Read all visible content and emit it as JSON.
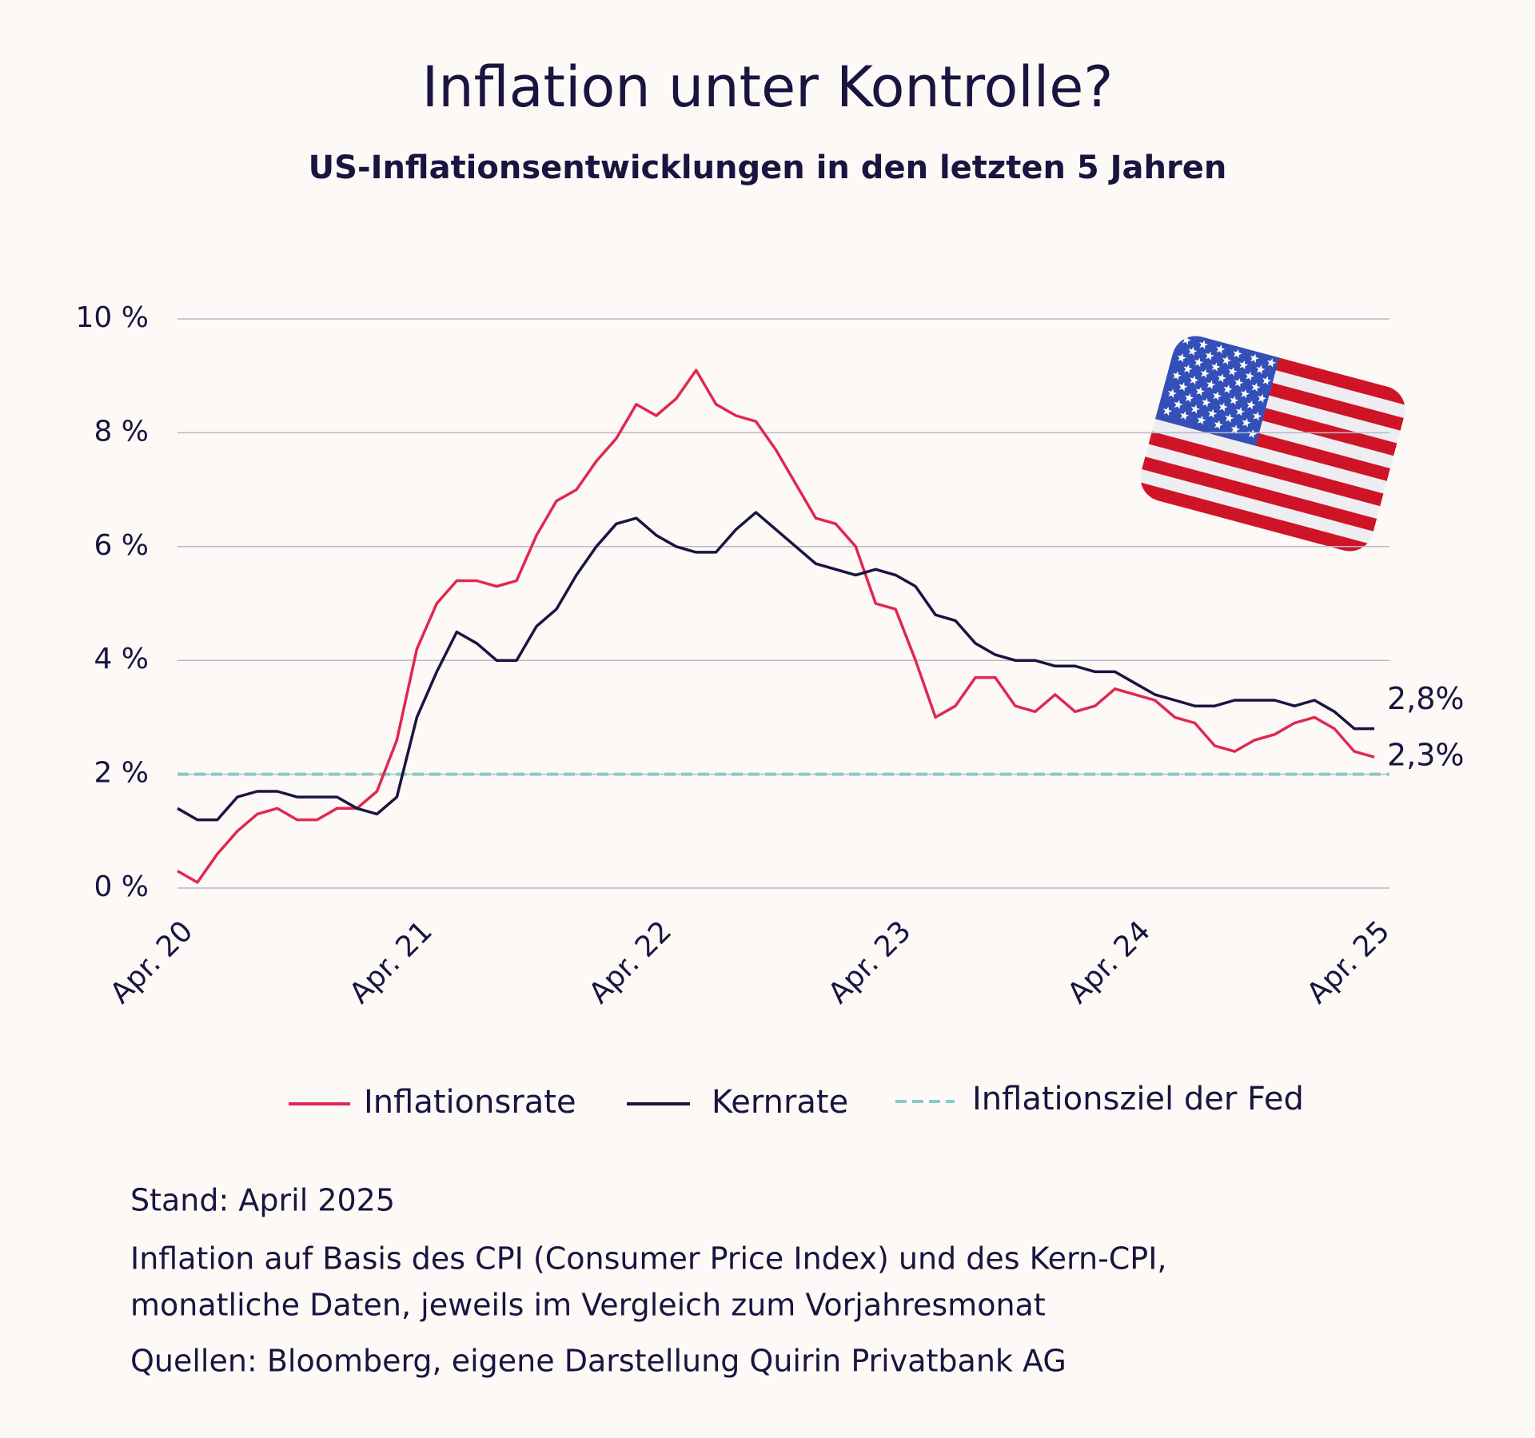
{
  "chart_data": {
    "type": "line",
    "title": "Inflation unter Kontrolle?",
    "subtitle": "US-Inflationsentwicklungen in den letzten 5 Jahren",
    "categories": [
      "Apr. 20",
      null,
      null,
      null,
      null,
      null,
      null,
      null,
      null,
      null,
      null,
      null,
      "Apr. 21",
      null,
      null,
      null,
      null,
      null,
      null,
      null,
      null,
      null,
      null,
      null,
      "Apr. 22",
      null,
      null,
      null,
      null,
      null,
      null,
      null,
      null,
      null,
      null,
      null,
      "Apr. 23",
      null,
      null,
      null,
      null,
      null,
      null,
      null,
      null,
      null,
      null,
      null,
      "Apr. 24",
      null,
      null,
      null,
      null,
      null,
      null,
      null,
      null,
      null,
      null,
      null,
      "Apr. 25"
    ],
    "series": [
      {
        "name": "Inflationsrate",
        "color": "#e0284f",
        "end_label": "2,3%",
        "values": [
          0.3,
          0.1,
          0.6,
          1.0,
          1.3,
          1.4,
          1.2,
          1.2,
          1.4,
          1.4,
          1.7,
          2.6,
          4.2,
          5.0,
          5.4,
          5.4,
          5.3,
          5.4,
          6.2,
          6.8,
          7.0,
          7.5,
          7.9,
          8.5,
          8.3,
          8.6,
          9.1,
          8.5,
          8.3,
          8.2,
          7.7,
          7.1,
          6.5,
          6.4,
          6.0,
          5.0,
          4.9,
          4.0,
          3.0,
          3.2,
          3.7,
          3.7,
          3.2,
          3.1,
          3.4,
          3.1,
          3.2,
          3.5,
          3.4,
          3.3,
          3.0,
          2.9,
          2.5,
          2.4,
          2.6,
          2.7,
          2.9,
          3.0,
          2.8,
          2.4,
          2.3
        ]
      },
      {
        "name": "Kernrate",
        "color": "#1a1440",
        "end_label": "2,8%",
        "values": [
          1.4,
          1.2,
          1.2,
          1.6,
          1.7,
          1.7,
          1.6,
          1.6,
          1.6,
          1.4,
          1.3,
          1.6,
          3.0,
          3.8,
          4.5,
          4.3,
          4.0,
          4.0,
          4.6,
          4.9,
          5.5,
          6.0,
          6.4,
          6.5,
          6.2,
          6.0,
          5.9,
          5.9,
          6.3,
          6.6,
          6.3,
          6.0,
          5.7,
          5.6,
          5.5,
          5.6,
          5.5,
          5.3,
          4.8,
          4.7,
          4.3,
          4.1,
          4.0,
          4.0,
          3.9,
          3.9,
          3.8,
          3.8,
          3.6,
          3.4,
          3.3,
          3.2,
          3.2,
          3.3,
          3.3,
          3.3,
          3.2,
          3.3,
          3.1,
          2.8,
          2.8
        ]
      }
    ],
    "target": {
      "name": "Inflationsziel der Fed",
      "color": "#8ec7c8",
      "value": 2
    },
    "ylim": [
      0,
      10
    ],
    "yticks": [
      {
        "value": 0,
        "label": "0 %"
      },
      {
        "value": 2,
        "label": "2 %"
      },
      {
        "value": 4,
        "label": "4 %"
      },
      {
        "value": 6,
        "label": "6 %"
      },
      {
        "value": 8,
        "label": "8 %"
      },
      {
        "value": 10,
        "label": "10 %"
      }
    ],
    "grid": true,
    "legend": "bottom",
    "notes": [
      "Stand: April 2025",
      "Inflation auf Basis des CPI (Consumer Price Index) und des Kern-CPI,",
      "monatliche Daten, jeweils im Vergleich zum Vorjahresmonat",
      "Quellen: Bloomberg, eigene Darstellung Quirin Privatbank AG"
    ]
  }
}
